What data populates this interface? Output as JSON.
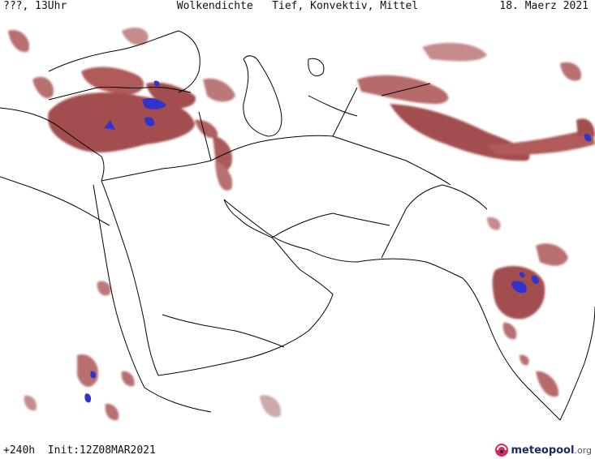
{
  "header": {
    "left": "???, 13Uhr",
    "title": "Wolkendichte   Tief, Konvektiv, Mittel",
    "date": "18. Maerz 2021"
  },
  "footer": {
    "forecast": "+240h  Init:12Z08MAR2021",
    "brand_name": "meteopool",
    "brand_tld": ".org"
  },
  "colors": {
    "cloud_fill": "#9a3b3b",
    "cloud_light": "#c89090",
    "convective": "#3333cc",
    "border": "#000000",
    "land": "#ffffff"
  },
  "icons": {
    "brand_logo": "meteopool-logo-icon"
  }
}
